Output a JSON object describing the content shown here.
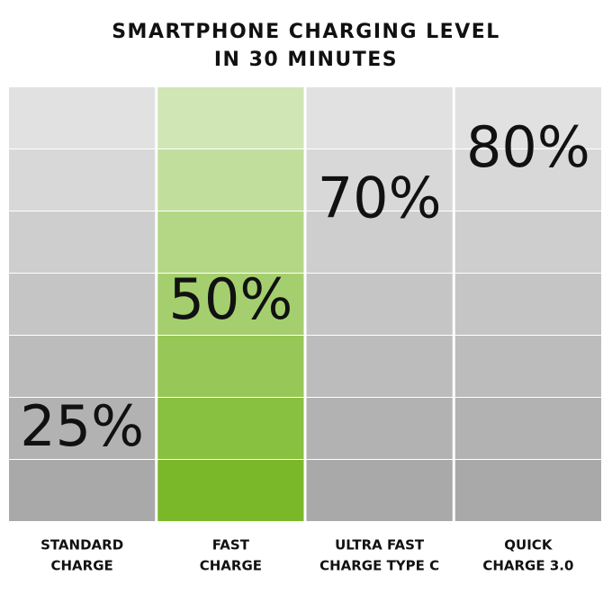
{
  "chart_data": {
    "type": "bar",
    "title_lines": [
      "SMARTPHONE CHARGING LEVEL",
      "IN 30 MINUTES"
    ],
    "categories": [
      [
        "STANDARD",
        "CHARGE"
      ],
      [
        "FAST",
        "CHARGE"
      ],
      [
        "ULTRA FAST",
        "CHARGE TYPE C"
      ],
      [
        "QUICK",
        "CHARGE 3.0"
      ]
    ],
    "values": [
      25,
      50,
      70,
      80
    ],
    "value_labels": [
      "25%",
      "50%",
      "70%",
      "80%"
    ],
    "colors": [
      "#a9a9a9",
      "#7ab829",
      "#a9a9a9",
      "#a9a9a9"
    ],
    "highlight": [
      false,
      true,
      false,
      false
    ],
    "ylim": [
      0,
      100
    ]
  }
}
